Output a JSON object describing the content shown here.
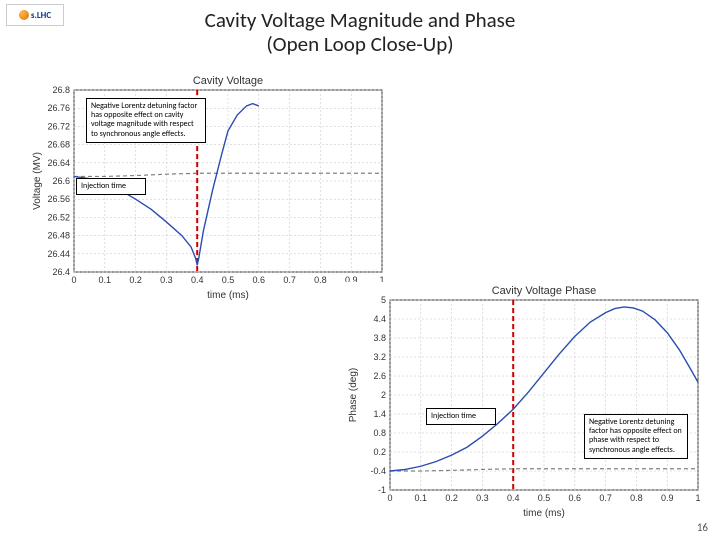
{
  "title_line1": "Cavity Voltage Magnitude and Phase",
  "title_line2": "(Open Loop Close-Up)",
  "logo_text": "s.LHC",
  "page_number": "16",
  "chart1": {
    "type": "line",
    "title": "Cavity Voltage",
    "xlabel": "time (ms)",
    "ylabel": "Voltage (MV)",
    "xlim": [
      0,
      1
    ],
    "ylim": [
      26.4,
      26.8
    ],
    "xticks": [
      0,
      0.1,
      0.2,
      0.3,
      0.4,
      0.5,
      0.6,
      0.7,
      0.8,
      0.9,
      1
    ],
    "yticks": [
      26.4,
      26.44,
      26.48,
      26.52,
      26.56,
      26.6,
      26.64,
      26.68,
      26.72,
      26.76,
      26.8
    ],
    "grid_color": "#c0c0c0",
    "axis_color": "#333333",
    "background_color": "#ffffff",
    "series": [
      {
        "color": "#808080",
        "style": "dash",
        "width": 1.2,
        "data": [
          [
            0,
            26.61
          ],
          [
            0.1,
            26.61
          ],
          [
            0.2,
            26.612
          ],
          [
            0.3,
            26.615
          ],
          [
            0.4,
            26.617
          ],
          [
            0.5,
            26.617
          ],
          [
            0.6,
            26.617
          ],
          [
            0.7,
            26.617
          ],
          [
            0.8,
            26.617
          ],
          [
            0.9,
            26.617
          ],
          [
            1.0,
            26.617
          ]
        ]
      },
      {
        "color": "#2a4db0",
        "style": "solid",
        "width": 1.4,
        "data": [
          [
            0,
            26.61
          ],
          [
            0.05,
            26.605
          ],
          [
            0.1,
            26.595
          ],
          [
            0.15,
            26.58
          ],
          [
            0.2,
            26.56
          ],
          [
            0.25,
            26.538
          ],
          [
            0.3,
            26.51
          ],
          [
            0.35,
            26.48
          ],
          [
            0.38,
            26.455
          ],
          [
            0.395,
            26.43
          ],
          [
            0.4,
            26.415
          ],
          [
            0.405,
            26.43
          ],
          [
            0.42,
            26.49
          ],
          [
            0.45,
            26.58
          ],
          [
            0.48,
            26.66
          ],
          [
            0.5,
            26.71
          ],
          [
            0.53,
            26.745
          ],
          [
            0.56,
            26.765
          ],
          [
            0.58,
            26.77
          ],
          [
            0.6,
            26.765
          ]
        ]
      }
    ],
    "injection_line": {
      "x": 0.4,
      "color": "#cc0000",
      "width": 2,
      "style": "dash"
    },
    "annot1": "Negative Lorentz detuning factor has opposite effect on cavity voltage magnitude with respect to synchronous angle effects.",
    "annot2": "Injection time"
  },
  "chart2": {
    "type": "line",
    "title": "Cavity Voltage Phase",
    "xlabel": "time (ms)",
    "ylabel": "Phase (deg)",
    "xlim": [
      0,
      1
    ],
    "ylim": [
      -1,
      5
    ],
    "xticks": [
      0,
      0.1,
      0.2,
      0.3,
      0.4,
      0.5,
      0.6,
      0.7,
      0.8,
      0.9,
      1
    ],
    "yticks": [
      -1,
      -0.4,
      0.2,
      0.8,
      1.4,
      2,
      2.6,
      3.2,
      3.8,
      4.4,
      5
    ],
    "grid_color": "#c0c0c0",
    "axis_color": "#333333",
    "background_color": "#ffffff",
    "series": [
      {
        "color": "#808080",
        "style": "dash",
        "width": 1.2,
        "data": [
          [
            0,
            -0.4
          ],
          [
            0.1,
            -0.4
          ],
          [
            0.2,
            -0.38
          ],
          [
            0.3,
            -0.35
          ],
          [
            0.4,
            -0.33
          ],
          [
            0.5,
            -0.33
          ],
          [
            0.6,
            -0.33
          ],
          [
            0.7,
            -0.33
          ],
          [
            0.8,
            -0.33
          ],
          [
            0.9,
            -0.33
          ],
          [
            1.0,
            -0.33
          ]
        ]
      },
      {
        "color": "#2a4db0",
        "style": "solid",
        "width": 1.4,
        "data": [
          [
            0,
            -0.4
          ],
          [
            0.05,
            -0.35
          ],
          [
            0.1,
            -0.25
          ],
          [
            0.15,
            -0.1
          ],
          [
            0.2,
            0.1
          ],
          [
            0.25,
            0.35
          ],
          [
            0.3,
            0.7
          ],
          [
            0.35,
            1.1
          ],
          [
            0.4,
            1.55
          ],
          [
            0.45,
            2.1
          ],
          [
            0.5,
            2.7
          ],
          [
            0.55,
            3.3
          ],
          [
            0.6,
            3.85
          ],
          [
            0.65,
            4.3
          ],
          [
            0.7,
            4.6
          ],
          [
            0.73,
            4.73
          ],
          [
            0.76,
            4.78
          ],
          [
            0.79,
            4.75
          ],
          [
            0.82,
            4.65
          ],
          [
            0.86,
            4.38
          ],
          [
            0.9,
            3.97
          ],
          [
            0.94,
            3.42
          ],
          [
            0.98,
            2.75
          ],
          [
            1.0,
            2.4
          ]
        ]
      }
    ],
    "injection_line": {
      "x": 0.4,
      "color": "#cc0000",
      "width": 2,
      "style": "dash"
    },
    "annot1": "Injection time",
    "annot2": "Negative Lorentz detuning factor has opposite effect on phase with respect to synchronous angle effects."
  }
}
